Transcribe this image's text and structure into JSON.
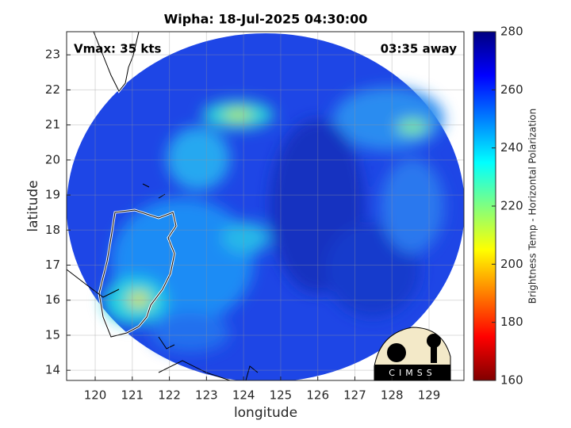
{
  "chart_data": {
    "type": "heatmap",
    "title": "Wipha: 18-Jul-2025 04:30:00",
    "annotations": [
      "Vmax: 35 kts",
      "03:35 away"
    ],
    "xlabel": "longitude",
    "ylabel": "latitude",
    "xlim": [
      119.23,
      129.94
    ],
    "ylim": [
      13.71,
      23.66
    ],
    "xticks": [
      120,
      121,
      122,
      123,
      124,
      125,
      126,
      127,
      128,
      129
    ],
    "yticks": [
      14,
      15,
      16,
      17,
      18,
      19,
      20,
      21,
      22,
      23
    ],
    "grid": true,
    "colorbar": {
      "label": "Brightness Temp - Horizontal Polarization",
      "lim": [
        160,
        280
      ],
      "ticks": [
        160,
        180,
        200,
        220,
        240,
        260,
        280
      ]
    },
    "logo_text": "CIMSS"
  }
}
